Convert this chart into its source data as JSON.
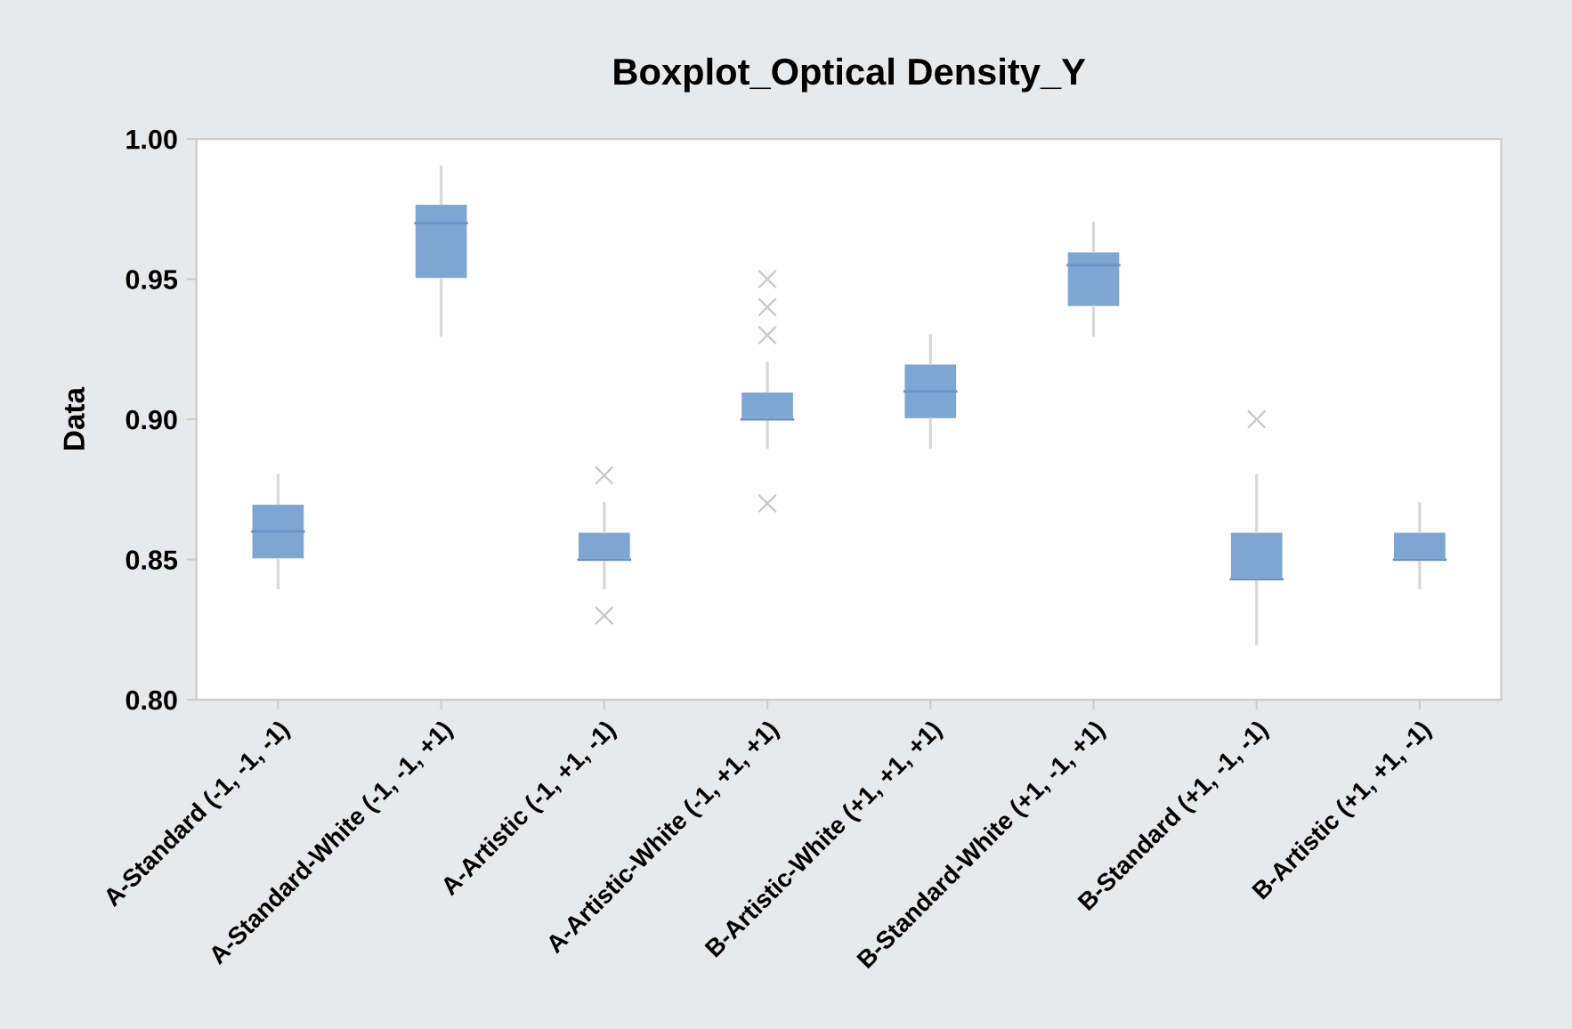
{
  "chart_data": {
    "type": "box",
    "title": "Boxplot_Optical Density_Y",
    "ylabel": "Data",
    "categories": [
      "A-Standard (-1, -1, -1)",
      "A-Standard-White (-1, -1, +1)",
      "A-Artistic (-1, +1, -1)",
      "A-Artistic-White (-1, +1, +1)",
      "B-Artistic-White (+1, +1, +1)",
      "B-Standard-White (+1, -1, +1)",
      "B-Standard (+1, -1, -1)",
      "B-Artistic (+1, +1, -1)"
    ],
    "boxes": [
      {
        "low": 0.84,
        "q1": 0.85,
        "median": 0.86,
        "q3": 0.87,
        "high": 0.88
      },
      {
        "low": 0.93,
        "q1": 0.95,
        "median": 0.97,
        "q3": 0.977,
        "high": 0.99
      },
      {
        "low": 0.84,
        "q1": 0.85,
        "median": 0.85,
        "q3": 0.86,
        "high": 0.87,
        "outliers": [
          0.88,
          0.83
        ]
      },
      {
        "low": 0.89,
        "q1": 0.9,
        "median": 0.9,
        "q3": 0.91,
        "high": 0.92,
        "outliers": [
          0.95,
          0.94,
          0.93,
          0.87
        ]
      },
      {
        "low": 0.89,
        "q1": 0.9,
        "median": 0.91,
        "q3": 0.92,
        "high": 0.93
      },
      {
        "low": 0.93,
        "q1": 0.94,
        "median": 0.955,
        "q3": 0.96,
        "high": 0.97
      },
      {
        "low": 0.82,
        "q1": 0.843,
        "median": 0.843,
        "q3": 0.86,
        "high": 0.88,
        "outliers": [
          0.9
        ]
      },
      {
        "low": 0.84,
        "q1": 0.85,
        "median": 0.85,
        "q3": 0.86,
        "high": 0.87
      }
    ],
    "color": "#7ea6d4",
    "ylim": [
      0.8,
      1.0
    ],
    "yticks": [
      {
        "value": 0.8,
        "label": "0.80"
      },
      {
        "value": 0.85,
        "label": "0.85"
      },
      {
        "value": 0.9,
        "label": "0.90"
      },
      {
        "value": 0.95,
        "label": "0.95"
      },
      {
        "value": 1.0,
        "label": "1.00"
      }
    ],
    "grid": false,
    "marker": "cross"
  }
}
